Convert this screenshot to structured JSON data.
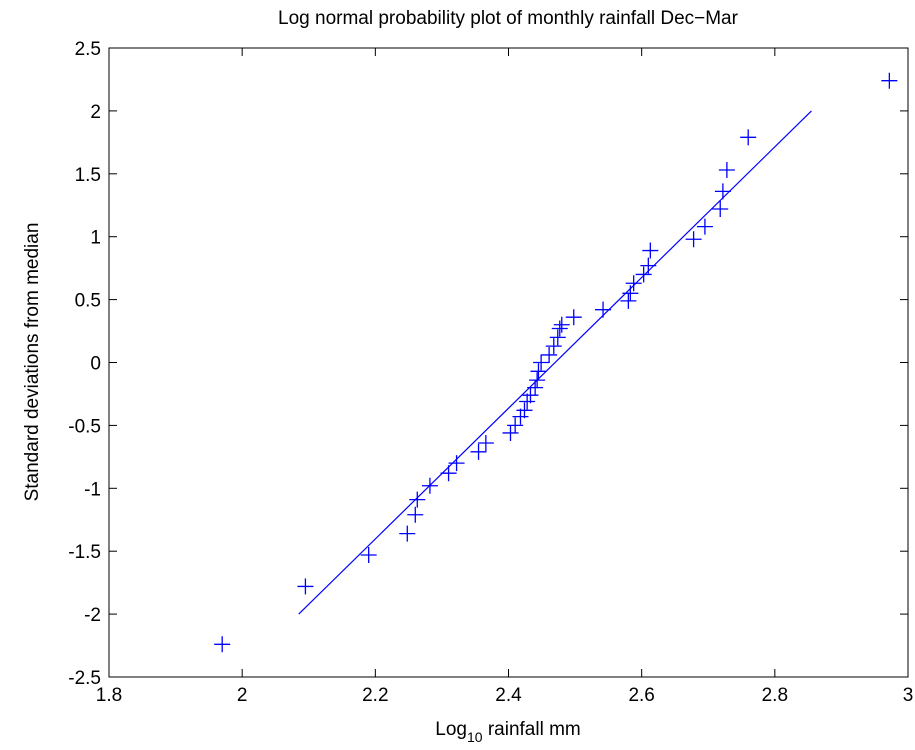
{
  "chart_data": {
    "type": "scatter",
    "title": "Log normal probability plot of monthly rainfall Dec−Mar",
    "xlabel": {
      "base": "Log",
      "sub": "10",
      "rest": " rainfall mm"
    },
    "ylabel": "Standard deviations from median",
    "xlim": [
      1.8,
      3
    ],
    "xticks": [
      1.8,
      2,
      2.2,
      2.4,
      2.6,
      2.8,
      3
    ],
    "ylim": [
      -2.5,
      2.5
    ],
    "yticks": [
      -2.5,
      -2,
      -1.5,
      -1,
      -0.5,
      0,
      0.5,
      1,
      1.5,
      2,
      2.5
    ],
    "series": [
      {
        "mode": "markers",
        "marker": "+",
        "color": "#0000ff",
        "x": [
          1.97,
          2.095,
          2.19,
          2.248,
          2.26,
          2.263,
          2.282,
          2.31,
          2.322,
          2.355,
          2.366,
          2.403,
          2.41,
          2.418,
          2.424,
          2.428,
          2.433,
          2.44,
          2.443,
          2.445,
          2.449,
          2.461,
          2.468,
          2.474,
          2.477,
          2.48,
          2.498,
          2.542,
          2.58,
          2.583,
          2.588,
          2.603,
          2.61,
          2.613,
          2.678,
          2.695,
          2.718,
          2.722,
          2.728,
          2.76,
          2.972
        ],
        "values": [
          -2.24,
          -1.78,
          -1.53,
          -1.36,
          -1.21,
          -1.09,
          -0.98,
          -0.88,
          -0.8,
          -0.71,
          -0.64,
          -0.56,
          -0.5,
          -0.43,
          -0.38,
          -0.31,
          -0.26,
          -0.2,
          -0.14,
          -0.07,
          0,
          0.06,
          0.13,
          0.2,
          0.27,
          0.3,
          0.36,
          0.42,
          0.49,
          0.55,
          0.63,
          0.7,
          0.77,
          0.89,
          0.98,
          1.08,
          1.22,
          1.36,
          1.53,
          1.79,
          2.24
        ]
      },
      {
        "mode": "line",
        "color": "#0000ff",
        "x": [
          2.085,
          2.855
        ],
        "values": [
          -2,
          2
        ]
      }
    ]
  }
}
